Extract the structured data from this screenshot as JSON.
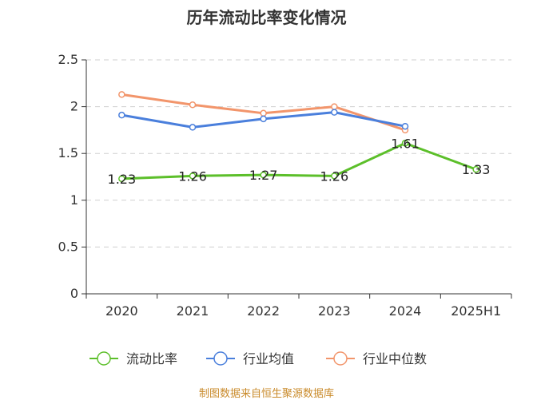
{
  "footer": {
    "source": "制图数据来自恒生聚源数据库"
  },
  "chart_data": {
    "type": "line",
    "title": "历年流动比率变化情况",
    "xlabel": "",
    "ylabel": "",
    "ylim": [
      0,
      2.5
    ],
    "yticks": [
      0,
      0.5,
      1,
      1.5,
      2,
      2.5
    ],
    "ytick_labels": [
      "0",
      "0.5",
      "1",
      "1.5",
      "2",
      "2.5"
    ],
    "grid": "horizontal-dashed",
    "legend_position": "bottom",
    "categories": [
      "2020",
      "2021",
      "2022",
      "2023",
      "2024",
      "2025H1"
    ],
    "series": [
      {
        "name": "流动比率",
        "color": "#5cbf2a",
        "values": [
          1.23,
          1.26,
          1.27,
          1.26,
          1.61,
          1.33
        ],
        "labels": [
          "1.23",
          "1.26",
          "1.27",
          "1.26",
          "1.61",
          "1.33"
        ],
        "show_labels": true
      },
      {
        "name": "行业均值",
        "color": "#4a7fdc",
        "values": [
          1.91,
          1.78,
          1.87,
          1.94,
          1.79,
          null
        ],
        "show_labels": false
      },
      {
        "name": "行业中位数",
        "color": "#f2956b",
        "values": [
          2.13,
          2.02,
          1.93,
          2.0,
          1.75,
          null
        ],
        "show_labels": false
      }
    ]
  }
}
